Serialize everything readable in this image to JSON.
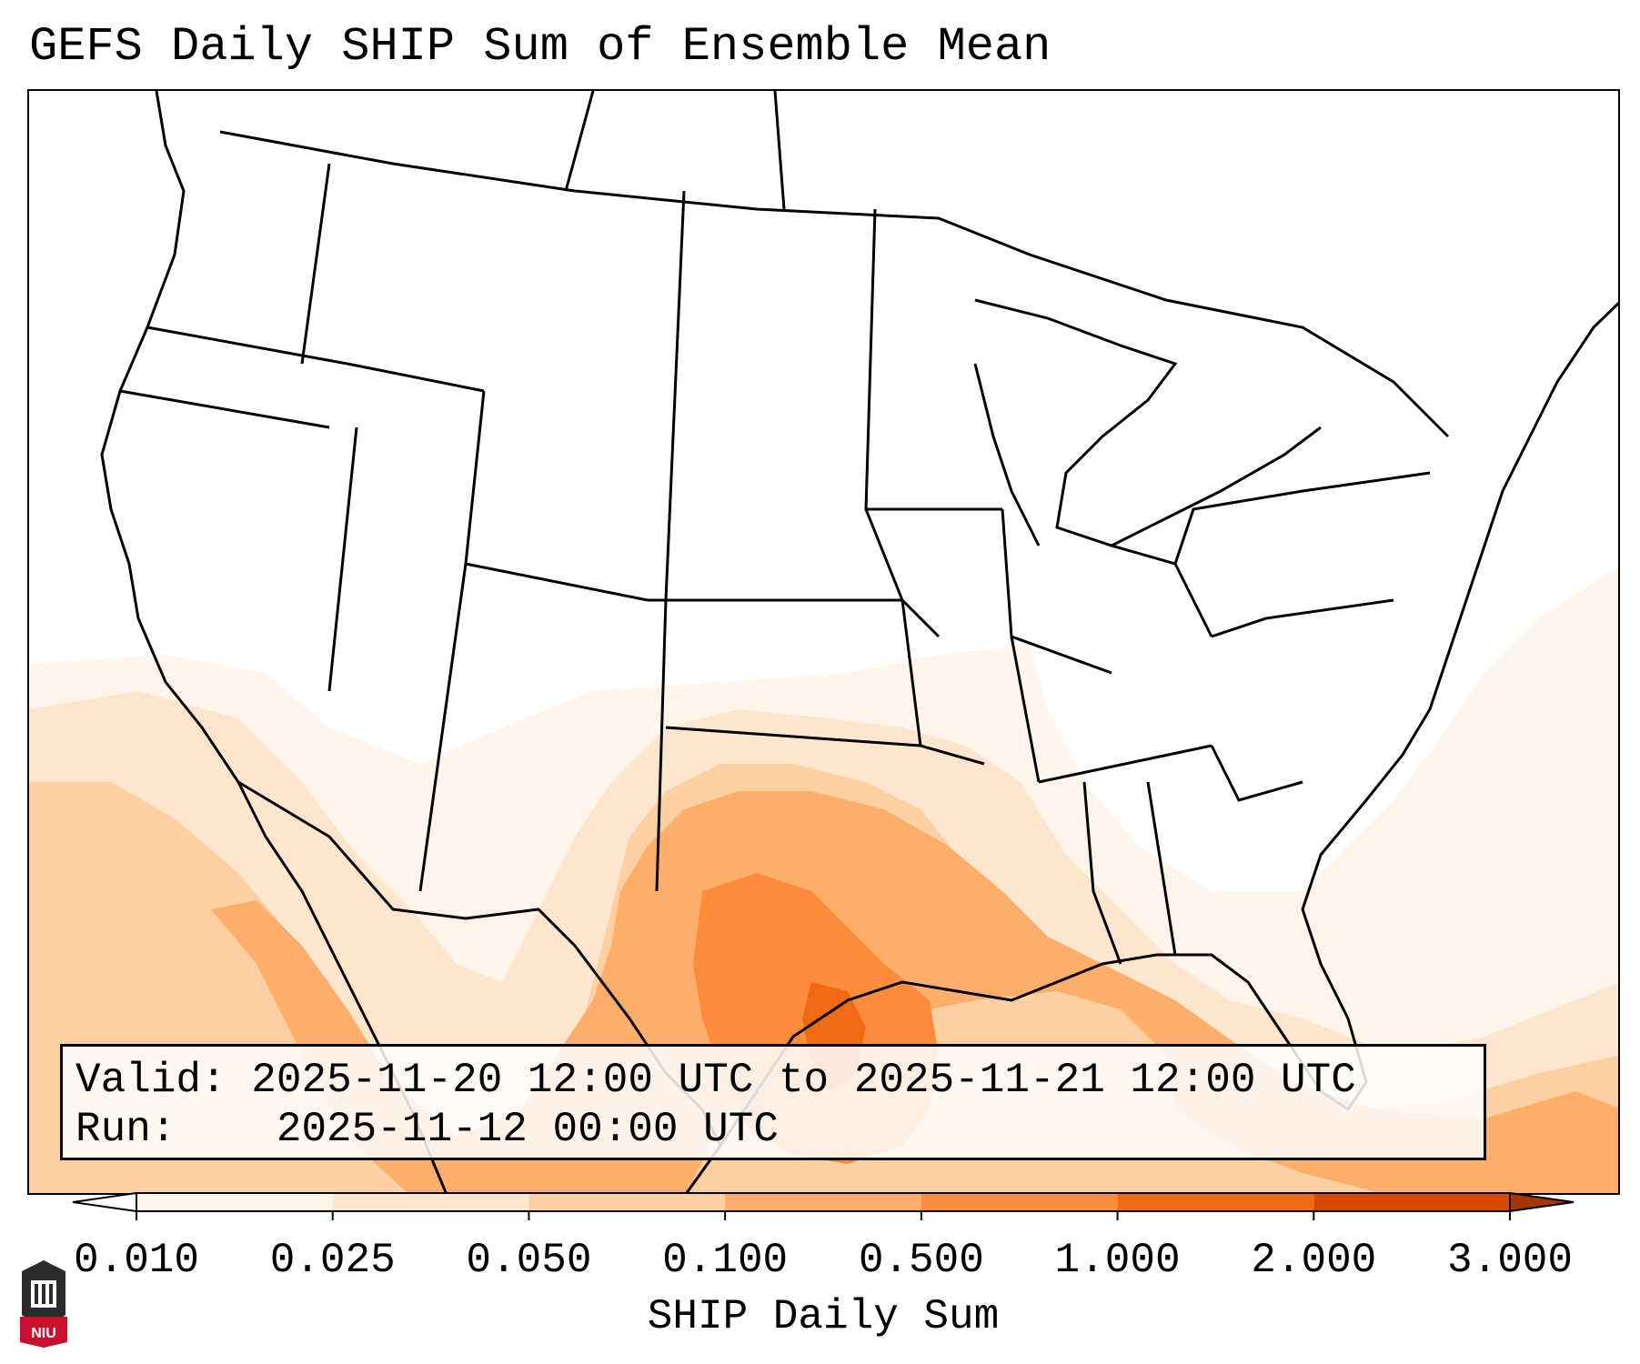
{
  "title": "GEFS Daily SHIP Sum of Ensemble Mean",
  "info": {
    "valid_label": "Valid:",
    "valid_value": "2025-11-20 12:00 UTC to 2025-11-21 12:00 UTC",
    "run_label": "Run:",
    "run_value": "2025-11-12 00:00 UTC"
  },
  "colorbar": {
    "label": "SHIP Daily Sum",
    "ticks": [
      "0.010",
      "0.025",
      "0.050",
      "0.100",
      "0.500",
      "1.000",
      "2.000",
      "3.000"
    ],
    "colors": [
      "#fff5eb",
      "#fee6ce",
      "#fdd0a2",
      "#fdae6b",
      "#fd8d3c",
      "#f16913",
      "#d94801"
    ],
    "extend": "both"
  },
  "logo": {
    "text": "NIU",
    "colors": {
      "shield": "#2b2b2b",
      "banner": "#c8102e"
    }
  }
}
